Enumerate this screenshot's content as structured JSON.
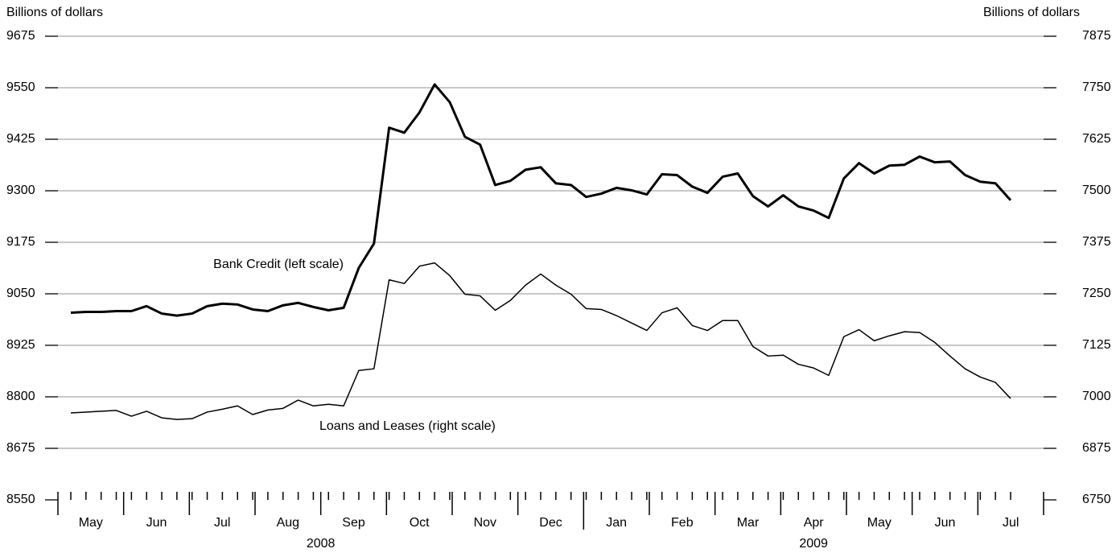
{
  "chart_data": {
    "type": "line",
    "y_label": "Billions of dollars",
    "y2_label": "Billions of dollars",
    "categories": [
      null,
      null,
      null,
      null,
      null,
      null,
      null,
      null,
      null,
      null,
      null,
      null,
      null,
      null,
      null,
      null,
      null,
      null,
      null,
      null,
      null,
      null,
      null,
      null,
      null,
      null,
      null,
      null,
      null,
      null,
      null,
      null,
      null,
      null,
      null,
      null,
      null,
      null,
      null,
      null,
      null,
      null,
      null,
      null,
      null,
      null,
      null,
      null,
      null,
      null,
      null,
      null,
      null,
      null,
      null,
      null,
      null,
      null,
      null,
      null,
      null,
      null,
      null
    ],
    "x_groups": [
      {
        "label": "2008",
        "months": [
          "May",
          "Jun",
          "Jul",
          "Aug",
          "Sep",
          "Oct",
          "Nov",
          "Dec"
        ]
      },
      {
        "label": "2009",
        "months": [
          "Jan",
          "Feb",
          "Mar",
          "Apr",
          "May",
          "Jun",
          "Jul"
        ]
      }
    ],
    "series": [
      {
        "name": "Bank Credit (left scale)",
        "color": "#000000",
        "axis": "y",
        "values": [
          9004,
          9006,
          9006,
          9008,
          9008,
          9020,
          9002,
          8997,
          9002,
          9020,
          9026,
          9024,
          9012,
          9008,
          9022,
          9028,
          9018,
          9010,
          9016,
          9113,
          9172,
          9453,
          9441,
          9490,
          9558,
          9515,
          9431,
          9412,
          9314,
          9324,
          9351,
          9357,
          9318,
          9314,
          9285,
          9293,
          9307,
          9301,
          9291,
          9340,
          9338,
          9310,
          9295,
          9334,
          9342,
          9287,
          9262,
          9289,
          9262,
          9252,
          9234,
          9330,
          9367,
          9342,
          9361,
          9363,
          9383,
          9369,
          9371,
          9338,
          9322,
          9318,
          9277
        ]
      },
      {
        "name": "Loans and Leases (right scale)",
        "color": "#000000",
        "axis": "y2",
        "values": [
          6961,
          6963,
          6965,
          6967,
          6953,
          6965,
          6949,
          6945,
          6947,
          6963,
          6970,
          6978,
          6957,
          6968,
          6972,
          6992,
          6978,
          6982,
          6978,
          7064,
          7068,
          7284,
          7275,
          7317,
          7325,
          7294,
          7249,
          7245,
          7210,
          7234,
          7271,
          7298,
          7271,
          7249,
          7214,
          7212,
          7197,
          7179,
          7161,
          7204,
          7216,
          7173,
          7161,
          7185,
          7185,
          7122,
          7099,
          7101,
          7079,
          7070,
          7052,
          7146,
          7163,
          7136,
          7148,
          7158,
          7156,
          7132,
          7099,
          7068,
          7048,
          7035,
          6996
        ]
      }
    ],
    "ylim": [
      8550,
      9675
    ],
    "yticks": [
      8550,
      8675,
      8800,
      8925,
      9050,
      9175,
      9300,
      9425,
      9550,
      9675
    ],
    "y2lim": [
      6750,
      7875
    ],
    "y2ticks": [
      6750,
      6875,
      7000,
      7125,
      7250,
      7375,
      7500,
      7625,
      7750,
      7875
    ],
    "grid": true
  }
}
